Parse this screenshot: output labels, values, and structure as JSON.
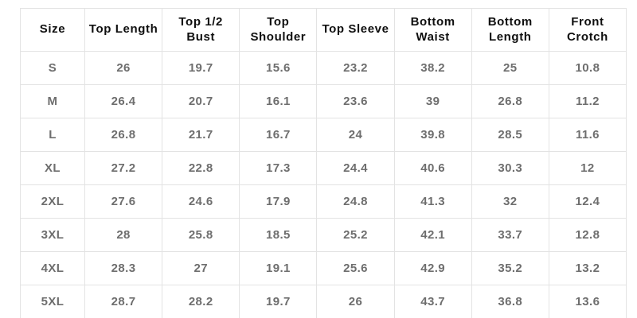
{
  "chart_data": {
    "type": "table",
    "columns": [
      "Size",
      "Top Length",
      "Top 1/2 Bust",
      "Top Shoulder",
      "Top Sleeve",
      "Bottom Waist",
      "Bottom Length",
      "Front Crotch"
    ],
    "rows": [
      [
        "S",
        "26",
        "19.7",
        "15.6",
        "23.2",
        "38.2",
        "25",
        "10.8"
      ],
      [
        "M",
        "26.4",
        "20.7",
        "16.1",
        "23.6",
        "39",
        "26.8",
        "11.2"
      ],
      [
        "L",
        "26.8",
        "21.7",
        "16.7",
        "24",
        "39.8",
        "28.5",
        "11.6"
      ],
      [
        "XL",
        "27.2",
        "22.8",
        "17.3",
        "24.4",
        "40.6",
        "30.3",
        "12"
      ],
      [
        "2XL",
        "27.6",
        "24.6",
        "17.9",
        "24.8",
        "41.3",
        "32",
        "12.4"
      ],
      [
        "3XL",
        "28",
        "25.8",
        "18.5",
        "25.2",
        "42.1",
        "33.7",
        "12.8"
      ],
      [
        "4XL",
        "28.3",
        "27",
        "19.1",
        "25.6",
        "42.9",
        "35.2",
        "13.2"
      ],
      [
        "5XL",
        "28.7",
        "28.2",
        "19.7",
        "26",
        "43.7",
        "36.8",
        "13.6"
      ]
    ],
    "layout": {
      "grid": true,
      "header_position": "top"
    }
  },
  "colors": {
    "background": "#ffffff",
    "grid_border": "#e3e3e3",
    "header_text": "#0f0f0f",
    "value_text": "#6e6e6e"
  }
}
